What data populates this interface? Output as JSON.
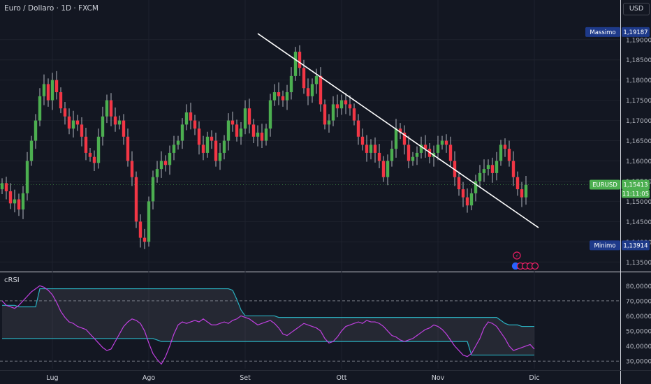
{
  "header": {
    "title": "Euro / Dollaro · 1D · FXCM",
    "currency": "USD"
  },
  "labels": {
    "max_label": "Massimo",
    "max_value": "1,19187",
    "min_label": "Minimo",
    "min_value": "1,13914",
    "symbol": "EURUSD",
    "last_value": "1,15413",
    "countdown": "11:11:05"
  },
  "colors": {
    "up": "#26a69a",
    "up_body": "#4caf50",
    "down": "#f23645",
    "background": "#131722",
    "grid": "#1e222d",
    "trendline": "#ffffff",
    "crsi": "#c040e0",
    "bands": "#2ab0c0",
    "price_tag": "#4caf50",
    "marker_tag": "#1e3a8a"
  },
  "chart_data": [
    {
      "type": "candlestick",
      "title": "Euro / Dollaro · 1D · FXCM",
      "x_ticks": [
        "Lug",
        "Ago",
        "Set",
        "Ott",
        "Nov",
        "Dic"
      ],
      "y_ticks": [
        "1,19000",
        "1,18500",
        "1,18000",
        "1,17500",
        "1,17000",
        "1,16500",
        "1,16000",
        "1,15500",
        "1,15000",
        "1,14500",
        "1,14000",
        "1,13500"
      ],
      "ylim": [
        1.1335,
        1.196
      ],
      "max": 1.19187,
      "min": 1.13914,
      "last": 1.15413,
      "closes": [
        1.1545,
        1.1525,
        1.1495,
        1.1505,
        1.148,
        1.152,
        1.16,
        1.165,
        1.17,
        1.176,
        1.179,
        1.175,
        1.18,
        1.177,
        1.173,
        1.171,
        1.168,
        1.17,
        1.169,
        1.166,
        1.162,
        1.161,
        1.1595,
        1.166,
        1.171,
        1.175,
        1.171,
        1.169,
        1.17,
        1.166,
        1.16,
        1.156,
        1.145,
        1.141,
        1.14,
        1.15,
        1.156,
        1.158,
        1.16,
        1.159,
        1.162,
        1.164,
        1.165,
        1.169,
        1.172,
        1.17,
        1.168,
        1.164,
        1.162,
        1.166,
        1.165,
        1.16,
        1.162,
        1.165,
        1.17,
        1.169,
        1.166,
        1.168,
        1.173,
        1.169,
        1.166,
        1.167,
        1.165,
        1.168,
        1.175,
        1.177,
        1.176,
        1.175,
        1.177,
        1.181,
        1.187,
        1.183,
        1.178,
        1.176,
        1.179,
        1.181,
        1.174,
        1.169,
        1.17,
        1.174,
        1.173,
        1.175,
        1.174,
        1.173,
        1.17,
        1.166,
        1.164,
        1.162,
        1.164,
        1.162,
        1.16,
        1.156,
        1.16,
        1.163,
        1.168,
        1.167,
        1.164,
        1.16,
        1.161,
        1.162,
        1.164,
        1.163,
        1.161,
        1.162,
        1.164,
        1.165,
        1.164,
        1.16,
        1.156,
        1.153,
        1.151,
        1.149,
        1.152,
        1.155,
        1.157,
        1.158,
        1.159,
        1.157,
        1.16,
        1.164,
        1.163,
        1.16,
        1.156,
        1.153,
        1.151,
        1.1541
      ],
      "opens": [
        1.153,
        1.1545,
        1.1525,
        1.1495,
        1.1505,
        1.148,
        1.152,
        1.16,
        1.165,
        1.17,
        1.176,
        1.179,
        1.175,
        1.18,
        1.177,
        1.173,
        1.171,
        1.168,
        1.17,
        1.169,
        1.166,
        1.162,
        1.161,
        1.1595,
        1.166,
        1.171,
        1.175,
        1.171,
        1.169,
        1.17,
        1.166,
        1.16,
        1.156,
        1.145,
        1.141,
        1.14,
        1.15,
        1.156,
        1.158,
        1.16,
        1.159,
        1.162,
        1.164,
        1.165,
        1.169,
        1.172,
        1.17,
        1.168,
        1.164,
        1.162,
        1.166,
        1.165,
        1.16,
        1.162,
        1.165,
        1.17,
        1.169,
        1.166,
        1.168,
        1.173,
        1.169,
        1.166,
        1.167,
        1.165,
        1.168,
        1.175,
        1.177,
        1.176,
        1.175,
        1.177,
        1.181,
        1.187,
        1.183,
        1.178,
        1.176,
        1.179,
        1.181,
        1.174,
        1.169,
        1.17,
        1.174,
        1.173,
        1.175,
        1.174,
        1.173,
        1.17,
        1.166,
        1.164,
        1.162,
        1.164,
        1.162,
        1.16,
        1.156,
        1.16,
        1.163,
        1.168,
        1.167,
        1.164,
        1.16,
        1.161,
        1.162,
        1.164,
        1.163,
        1.161,
        1.162,
        1.164,
        1.165,
        1.164,
        1.16,
        1.156,
        1.153,
        1.151,
        1.149,
        1.152,
        1.155,
        1.157,
        1.158,
        1.159,
        1.157,
        1.16,
        1.164,
        1.163,
        1.16,
        1.156,
        1.153,
        1.151
      ],
      "trendline": [
        {
          "x_index": 61,
          "y": 1.1915
        },
        {
          "x_index": 128,
          "y": 1.1435
        }
      ]
    },
    {
      "type": "line",
      "title": "cRSI",
      "y_ticks": [
        "80,00000",
        "70,00000",
        "60,00000",
        "50,00000",
        "40,00000",
        "30,00000"
      ],
      "ylim": [
        25,
        88
      ],
      "dashed_levels": [
        70,
        30
      ],
      "series": [
        {
          "values": [
            70,
            67,
            66,
            65,
            67,
            70,
            73,
            76,
            78,
            80,
            79,
            77,
            74,
            69,
            63,
            59,
            56,
            55,
            53,
            52,
            51,
            48,
            45,
            42,
            39,
            37,
            38,
            43,
            48,
            53,
            56,
            58,
            57,
            55,
            50,
            42,
            35,
            31,
            28,
            33,
            40,
            48,
            54,
            56,
            55,
            56,
            57,
            56,
            58,
            56,
            54,
            54,
            55,
            56,
            55,
            57,
            58,
            60,
            59,
            58,
            56,
            54,
            55,
            56,
            57,
            55,
            52,
            48,
            47,
            49,
            51,
            53,
            55,
            54,
            53,
            52,
            50,
            45,
            42,
            43,
            46,
            50,
            53,
            54,
            55,
            56,
            55,
            57,
            56,
            56,
            55,
            53,
            50,
            47,
            46,
            44,
            43,
            44,
            45,
            47,
            49,
            51,
            52,
            54,
            53,
            51,
            48,
            44,
            40,
            37,
            34,
            33,
            35,
            40,
            45,
            52,
            56,
            55,
            53,
            49,
            45,
            40,
            37,
            38,
            39,
            40,
            41,
            38
          ]
        },
        {
          "values": [
            67,
            67,
            67,
            67,
            66,
            66,
            66,
            66,
            66,
            78,
            78,
            78,
            78,
            78,
            78,
            78,
            78,
            78,
            78,
            78,
            78,
            78,
            78,
            78,
            78,
            78,
            78,
            78,
            78,
            78,
            78,
            78,
            78,
            78,
            78,
            78,
            78,
            78,
            78,
            78,
            78,
            78,
            78,
            78,
            78,
            78,
            78,
            78,
            78,
            78,
            78,
            78,
            78,
            78,
            78,
            77,
            71,
            64,
            60,
            60,
            60,
            60,
            60,
            60,
            60,
            60,
            59,
            59,
            59,
            59,
            59,
            59,
            59,
            59,
            59,
            59,
            59,
            59,
            59,
            59,
            59,
            59,
            59,
            59,
            59,
            59,
            59,
            59,
            59,
            59,
            59,
            59,
            59,
            59,
            59,
            59,
            59,
            59,
            59,
            59,
            59,
            59,
            59,
            59,
            59,
            59,
            59,
            59,
            59,
            59,
            59,
            59,
            59,
            59,
            59,
            59,
            59,
            59,
            59,
            57,
            55,
            54,
            54,
            54,
            53,
            53,
            53,
            53
          ]
        },
        {
          "values": [
            45,
            45,
            45,
            45,
            45,
            45,
            45,
            45,
            45,
            45,
            45,
            45,
            45,
            45,
            45,
            45,
            45,
            45,
            45,
            45,
            45,
            45,
            45,
            45,
            45,
            45,
            45,
            45,
            45,
            45,
            45,
            45,
            45,
            45,
            45,
            45,
            45,
            44,
            43,
            43,
            43,
            43,
            43,
            43,
            43,
            43,
            43,
            43,
            43,
            43,
            43,
            43,
            43,
            43,
            43,
            43,
            43,
            43,
            43,
            43,
            43,
            43,
            43,
            43,
            43,
            43,
            43,
            43,
            43,
            43,
            43,
            43,
            43,
            43,
            43,
            43,
            43,
            43,
            43,
            43,
            43,
            43,
            43,
            43,
            43,
            43,
            43,
            43,
            43,
            43,
            43,
            43,
            43,
            43,
            43,
            43,
            43,
            43,
            43,
            43,
            43,
            43,
            43,
            43,
            43,
            43,
            43,
            43,
            43,
            43,
            43,
            43,
            34,
            34,
            34,
            34,
            34,
            34,
            34,
            34,
            34,
            34,
            34,
            34,
            34,
            34,
            34,
            34
          ]
        }
      ]
    }
  ]
}
